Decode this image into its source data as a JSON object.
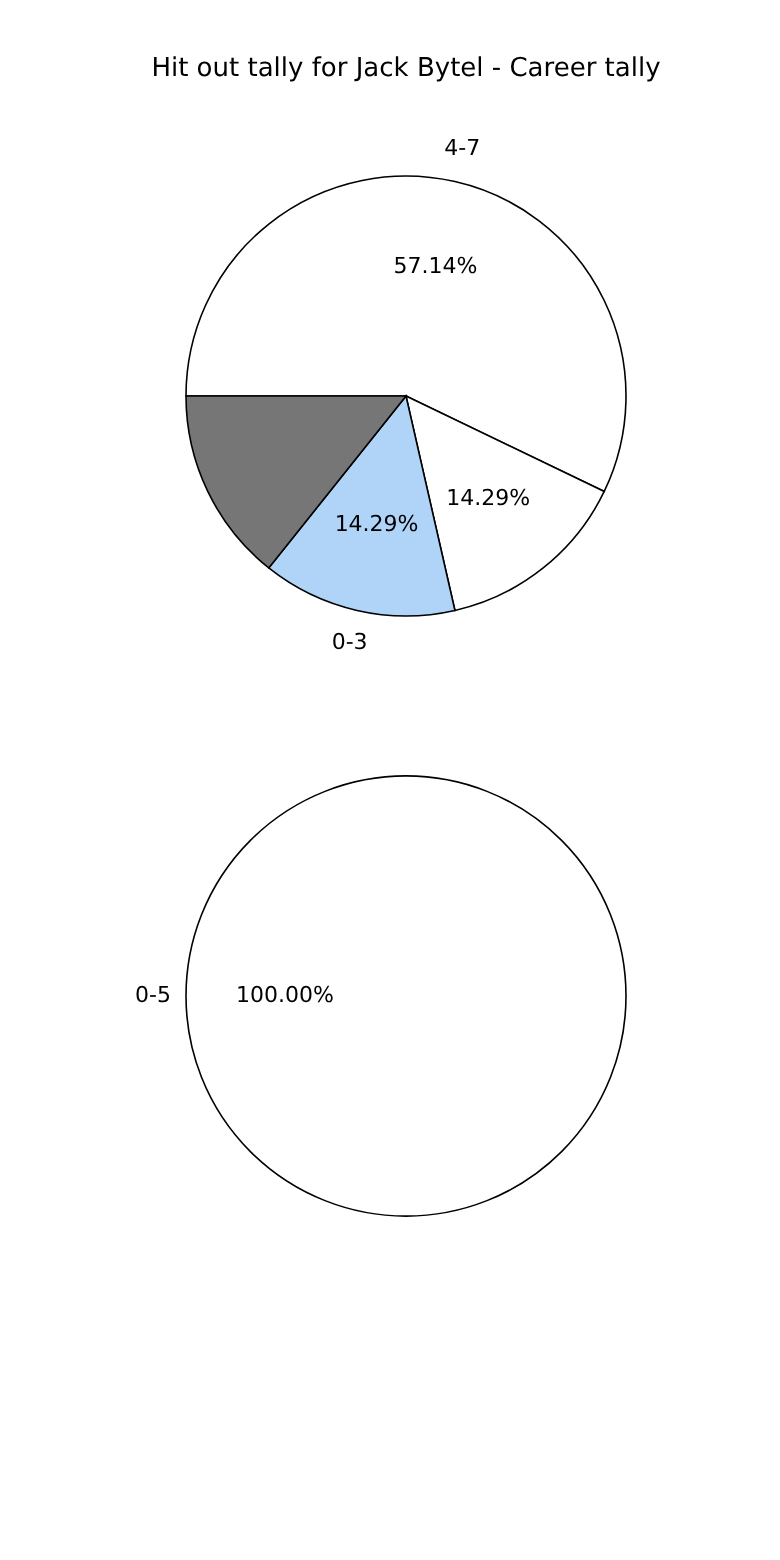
{
  "chart_data": [
    {
      "type": "pie",
      "title": "Hit out tally for Jack Bytel - Career tally",
      "categories": [
        "4-7",
        null,
        "0-3",
        null
      ],
      "values": [
        57.14,
        14.29,
        14.29,
        14.28
      ],
      "colors": [
        "#ffffff",
        "#ffffff",
        "#b0d4f8",
        "#767676"
      ],
      "value_labels": [
        "57.14%",
        "14.29%",
        "14.29%",
        null
      ]
    },
    {
      "type": "pie",
      "categories": [
        "0-5"
      ],
      "values": [
        100
      ],
      "colors": [
        "#ffffff"
      ],
      "value_labels": [
        "100.00%"
      ]
    }
  ]
}
